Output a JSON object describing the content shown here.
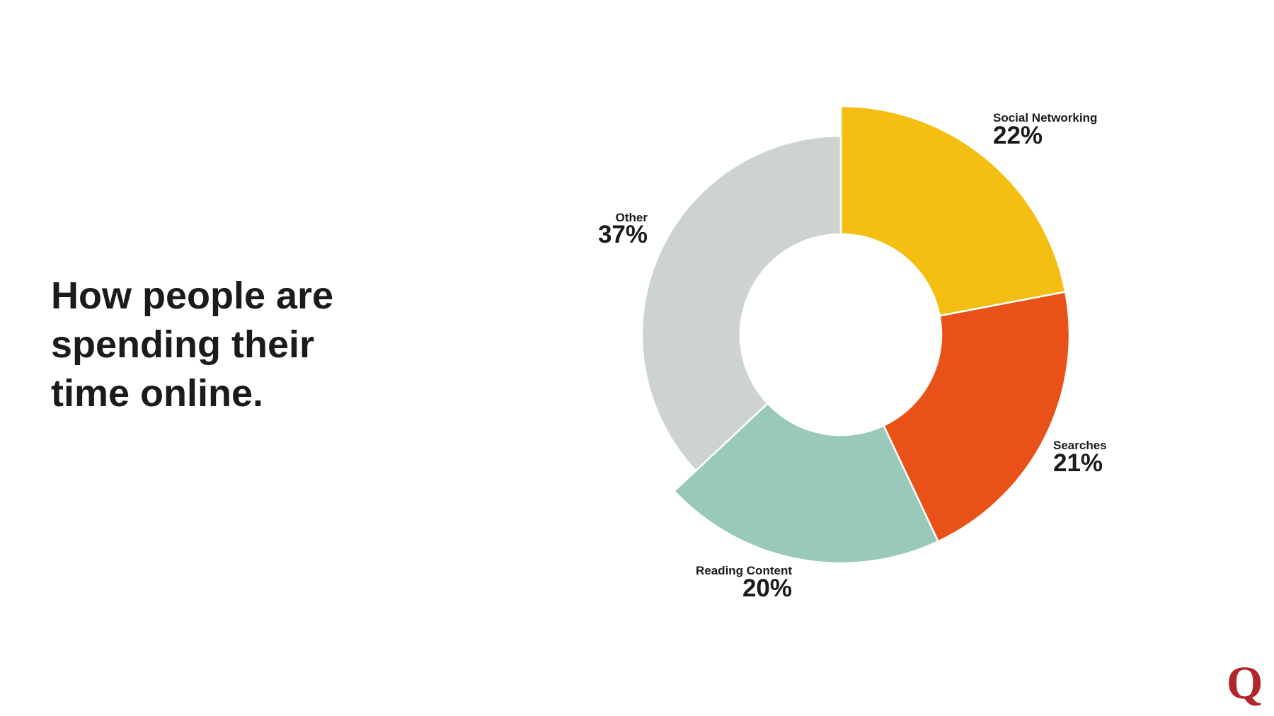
{
  "chart_data": {
    "type": "donut",
    "title": "How people are spending their time online.",
    "categories": [
      "Social Networking",
      "Searches",
      "Reading Content",
      "Other"
    ],
    "values": [
      22,
      21,
      20,
      37
    ],
    "value_labels": [
      "22%",
      "21%",
      "20%",
      "37%"
    ],
    "colors": [
      "#f4bf12",
      "#e85118",
      "#99c9bb",
      "#cdd3d3"
    ]
  },
  "logo": "Q"
}
